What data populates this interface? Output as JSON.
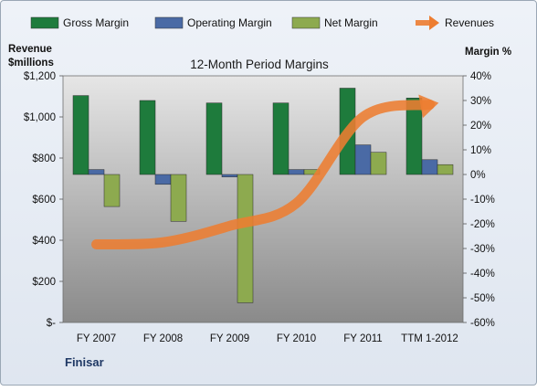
{
  "chart_data": {
    "type": "bar",
    "title": "12-Month Period Margins",
    "company": "Finisar",
    "categories": [
      "FY 2007",
      "FY 2008",
      "FY 2009",
      "FY 2010",
      "FY 2011",
      "TTM 1-2012"
    ],
    "left_axis": {
      "label_line1": "Revenue",
      "label_line2": "$millions",
      "ylim": [
        0,
        1200
      ],
      "ticks": [
        0,
        200,
        400,
        600,
        800,
        1000,
        1200
      ],
      "tick_labels": [
        "$-",
        "$200",
        "$400",
        "$600",
        "$800",
        "$1,000",
        "$1,200"
      ]
    },
    "right_axis": {
      "label": "Margin %",
      "ylim": [
        -60,
        40
      ],
      "ticks": [
        -60,
        -50,
        -40,
        -30,
        -20,
        -10,
        0,
        10,
        20,
        30,
        40
      ],
      "tick_labels": [
        "-60%",
        "-50%",
        "-40%",
        "-30%",
        "-20%",
        "-10%",
        "0%",
        "10%",
        "20%",
        "30%",
        "40%"
      ]
    },
    "series": [
      {
        "name": "Gross Margin",
        "axis": "right",
        "color": "#1e7b3c",
        "values": [
          32,
          30,
          29,
          29,
          35,
          31
        ]
      },
      {
        "name": "Operating Margin",
        "axis": "right",
        "color": "#4a6aa5",
        "values": [
          2,
          -4,
          -1,
          2,
          12,
          6
        ]
      },
      {
        "name": "Net Margin",
        "axis": "right",
        "color": "#8daa4f",
        "values": [
          -13,
          -19,
          -52,
          2,
          9,
          4
        ]
      },
      {
        "name": "Revenues",
        "axis": "left",
        "type": "line",
        "color": "#ed7d31",
        "values": [
          380,
          390,
          470,
          580,
          1000,
          1060
        ]
      }
    ],
    "legend_position": "top",
    "grid": false
  }
}
